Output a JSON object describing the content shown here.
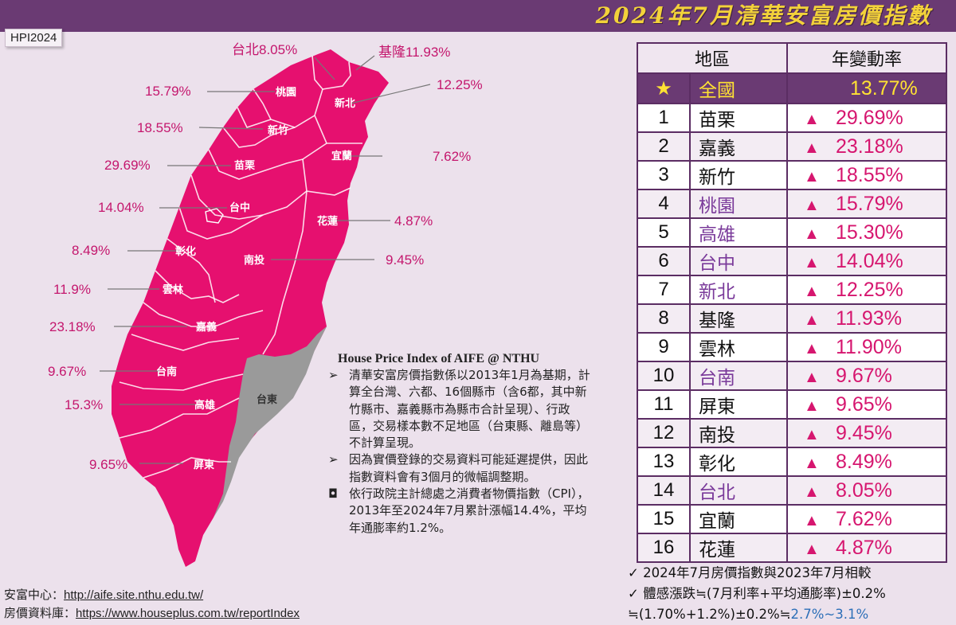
{
  "header": {
    "title": "2024年7月清華安富房價指數",
    "tag": "HPI2024"
  },
  "map": {
    "counties": [
      {
        "name": "台北",
        "rate": "8.05%"
      },
      {
        "name": "基隆",
        "rate": "11.93%"
      },
      {
        "name": "新北",
        "rate": "12.25%"
      },
      {
        "name": "桃園",
        "rate": "15.79%"
      },
      {
        "name": "新竹",
        "rate": "18.55%"
      },
      {
        "name": "苗栗",
        "rate": "29.69%"
      },
      {
        "name": "宜蘭",
        "rate": "7.62%"
      },
      {
        "name": "台中",
        "rate": "14.04%"
      },
      {
        "name": "花蓮",
        "rate": "4.87%"
      },
      {
        "name": "彰化",
        "rate": "8.49%"
      },
      {
        "name": "南投",
        "rate": "9.45%"
      },
      {
        "name": "雲林",
        "rate": "11.9%"
      },
      {
        "name": "嘉義",
        "rate": "23.18%"
      },
      {
        "name": "台南",
        "rate": "9.67%"
      },
      {
        "name": "高雄",
        "rate": "15.3%"
      },
      {
        "name": "台東",
        "rate": ""
      },
      {
        "name": "屏東",
        "rate": "9.65%"
      }
    ],
    "colors": {
      "covered": "#e6106f",
      "excluded": "#9a9a9a"
    }
  },
  "info": {
    "heading": "House Price Index of AIFE @ NTHU",
    "bullet1_symbol": "➢",
    "bullet1": "清華安富房價指數係以2013年1月為基期，計算全台灣、六都、16個縣市（含6都，其中新竹縣市、嘉義縣市為縣市合計呈現）、行政區，交易樣本數不足地區（台東縣、離島等）不計算呈現。",
    "bullet2_symbol": "➢",
    "bullet2": "因為實價登錄的交易資料可能延遲提供，因此指數資料會有3個月的微幅調整期。",
    "bullet3_symbol": "◘",
    "bullet3": "依行政院主計總處之消費者物價指數（CPI），2013年至2024年7月累計漲幅14.4%，平均年通膨率約1.2%。"
  },
  "links": {
    "center_label": "安富中心：",
    "center_url": "http://aife.site.nthu.edu.tw/",
    "db_label": "房價資料庫：",
    "db_url": "https://www.houseplus.com.tw/reportIndex"
  },
  "table": {
    "col_region": "地區",
    "col_rate": "年變動率",
    "national": {
      "rank": "★",
      "name": "全國",
      "rate": "13.77%"
    },
    "up_symbol": "▲",
    "rows": [
      {
        "rank": "1",
        "name": "苗栗",
        "rate": "29.69%",
        "metro": false
      },
      {
        "rank": "2",
        "name": "嘉義",
        "rate": "23.18%",
        "metro": false
      },
      {
        "rank": "3",
        "name": "新竹",
        "rate": "18.55%",
        "metro": false
      },
      {
        "rank": "4",
        "name": "桃園",
        "rate": "15.79%",
        "metro": true
      },
      {
        "rank": "5",
        "name": "高雄",
        "rate": "15.30%",
        "metro": true
      },
      {
        "rank": "6",
        "name": "台中",
        "rate": "14.04%",
        "metro": true
      },
      {
        "rank": "7",
        "name": "新北",
        "rate": "12.25%",
        "metro": true
      },
      {
        "rank": "8",
        "name": "基隆",
        "rate": "11.93%",
        "metro": false
      },
      {
        "rank": "9",
        "name": "雲林",
        "rate": "11.90%",
        "metro": false
      },
      {
        "rank": "10",
        "name": "台南",
        "rate": "9.67%",
        "metro": true
      },
      {
        "rank": "11",
        "name": "屏東",
        "rate": "9.65%",
        "metro": false
      },
      {
        "rank": "12",
        "name": "南投",
        "rate": "9.45%",
        "metro": false
      },
      {
        "rank": "13",
        "name": "彰化",
        "rate": "8.49%",
        "metro": false
      },
      {
        "rank": "14",
        "name": "台北",
        "rate": "8.05%",
        "metro": true
      },
      {
        "rank": "15",
        "name": "宜蘭",
        "rate": "7.62%",
        "metro": false
      },
      {
        "rank": "16",
        "name": "花蓮",
        "rate": "4.87%",
        "metro": false
      }
    ]
  },
  "notes": {
    "line1": "✓ 2024年7月房價指數與2023年7月相較",
    "line2": "✓ 體感漲跌≒(7月利率+平均通膨率)±0.2%",
    "line3_prefix": "≒(1.70%+1.2%)±0.2%≒",
    "line3_range": "2.7%~3.1%"
  }
}
